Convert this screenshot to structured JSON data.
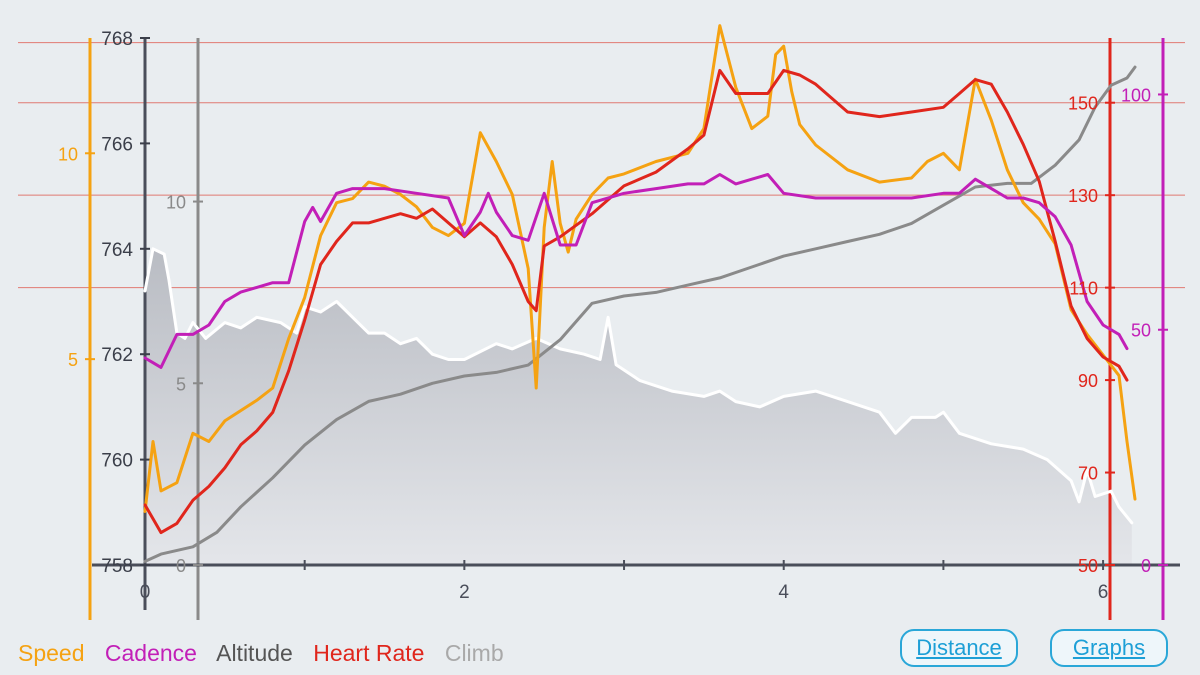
{
  "chart_data": {
    "type": "line",
    "x_ticks": [
      0,
      2,
      4,
      6
    ],
    "xlim": [
      0,
      6.25
    ],
    "axes": {
      "altitude": {
        "label_ticks": [
          758,
          760,
          762,
          764,
          766,
          768
        ],
        "range": [
          758,
          768
        ]
      },
      "climb": {
        "label_ticks": [
          0,
          5,
          10
        ],
        "range": [
          0,
          14.5
        ]
      },
      "speed": {
        "label_ticks": [
          5,
          10
        ],
        "range": [
          0,
          12.8
        ]
      },
      "heart_rate": {
        "label_ticks": [
          50,
          70,
          90,
          110,
          130,
          150
        ],
        "range": [
          50,
          164
        ]
      },
      "cadence": {
        "label_ticks": [
          0,
          50,
          100
        ],
        "range": [
          0,
          112
        ]
      }
    },
    "hr_grid_lines": [
      110,
      130,
      150,
      163
    ],
    "series": [
      {
        "name": "Altitude",
        "axis": "altitude",
        "color": "#ffffff",
        "fill": true,
        "points": [
          [
            0,
            763.2
          ],
          [
            0.05,
            764
          ],
          [
            0.12,
            763.9
          ],
          [
            0.15,
            763.4
          ],
          [
            0.2,
            762.4
          ],
          [
            0.25,
            762.3
          ],
          [
            0.3,
            762.6
          ],
          [
            0.38,
            762.3
          ],
          [
            0.5,
            762.6
          ],
          [
            0.6,
            762.5
          ],
          [
            0.7,
            762.7
          ],
          [
            0.85,
            762.6
          ],
          [
            0.95,
            762.4
          ],
          [
            1.0,
            762.9
          ],
          [
            1.1,
            762.8
          ],
          [
            1.2,
            763.0
          ],
          [
            1.3,
            762.7
          ],
          [
            1.4,
            762.4
          ],
          [
            1.5,
            762.4
          ],
          [
            1.6,
            762.2
          ],
          [
            1.7,
            762.3
          ],
          [
            1.8,
            762.0
          ],
          [
            1.9,
            761.9
          ],
          [
            2.0,
            761.9
          ],
          [
            2.2,
            762.2
          ],
          [
            2.3,
            762.1
          ],
          [
            2.45,
            762.3
          ],
          [
            2.6,
            762.1
          ],
          [
            2.75,
            762.0
          ],
          [
            2.85,
            761.9
          ],
          [
            2.9,
            762.7
          ],
          [
            2.95,
            761.8
          ],
          [
            3.1,
            761.5
          ],
          [
            3.3,
            761.3
          ],
          [
            3.5,
            761.2
          ],
          [
            3.6,
            761.3
          ],
          [
            3.7,
            761.1
          ],
          [
            3.85,
            761.0
          ],
          [
            4.0,
            761.2
          ],
          [
            4.2,
            761.3
          ],
          [
            4.4,
            761.1
          ],
          [
            4.6,
            760.9
          ],
          [
            4.7,
            760.5
          ],
          [
            4.8,
            760.8
          ],
          [
            4.95,
            760.8
          ],
          [
            5.0,
            760.9
          ],
          [
            5.1,
            760.5
          ],
          [
            5.3,
            760.3
          ],
          [
            5.5,
            760.2
          ],
          [
            5.65,
            760.0
          ],
          [
            5.8,
            759.6
          ],
          [
            5.85,
            759.2
          ],
          [
            5.9,
            759.8
          ],
          [
            5.95,
            759.3
          ],
          [
            6.05,
            759.4
          ],
          [
            6.1,
            759.1
          ],
          [
            6.18,
            758.8
          ]
        ]
      },
      {
        "name": "Climb",
        "axis": "climb",
        "color": "#8a8a8a",
        "points": [
          [
            0,
            0.1
          ],
          [
            0.1,
            0.3
          ],
          [
            0.3,
            0.5
          ],
          [
            0.45,
            0.9
          ],
          [
            0.6,
            1.6
          ],
          [
            0.8,
            2.4
          ],
          [
            1.0,
            3.3
          ],
          [
            1.2,
            4.0
          ],
          [
            1.4,
            4.5
          ],
          [
            1.6,
            4.7
          ],
          [
            1.8,
            5.0
          ],
          [
            2.0,
            5.2
          ],
          [
            2.2,
            5.3
          ],
          [
            2.4,
            5.5
          ],
          [
            2.6,
            6.2
          ],
          [
            2.8,
            7.2
          ],
          [
            3.0,
            7.4
          ],
          [
            3.2,
            7.5
          ],
          [
            3.4,
            7.7
          ],
          [
            3.6,
            7.9
          ],
          [
            3.8,
            8.2
          ],
          [
            4.0,
            8.5
          ],
          [
            4.2,
            8.7
          ],
          [
            4.4,
            8.9
          ],
          [
            4.6,
            9.1
          ],
          [
            4.8,
            9.4
          ],
          [
            5.0,
            9.9
          ],
          [
            5.2,
            10.4
          ],
          [
            5.4,
            10.5
          ],
          [
            5.55,
            10.5
          ],
          [
            5.7,
            11.0
          ],
          [
            5.85,
            11.7
          ],
          [
            5.95,
            12.6
          ],
          [
            6.05,
            13.2
          ],
          [
            6.15,
            13.4
          ],
          [
            6.2,
            13.7
          ]
        ]
      },
      {
        "name": "Speed",
        "axis": "speed",
        "color": "#f5a212",
        "points": [
          [
            0,
            1.3
          ],
          [
            0.05,
            3.0
          ],
          [
            0.1,
            1.8
          ],
          [
            0.2,
            2.0
          ],
          [
            0.3,
            3.2
          ],
          [
            0.4,
            3.0
          ],
          [
            0.5,
            3.5
          ],
          [
            0.7,
            4.0
          ],
          [
            0.8,
            4.3
          ],
          [
            0.9,
            5.5
          ],
          [
            1.0,
            6.5
          ],
          [
            1.1,
            8.0
          ],
          [
            1.2,
            8.8
          ],
          [
            1.3,
            8.9
          ],
          [
            1.4,
            9.3
          ],
          [
            1.5,
            9.2
          ],
          [
            1.6,
            9.0
          ],
          [
            1.7,
            8.7
          ],
          [
            1.8,
            8.2
          ],
          [
            1.9,
            8.0
          ],
          [
            2.0,
            8.3
          ],
          [
            2.1,
            10.5
          ],
          [
            2.2,
            9.8
          ],
          [
            2.3,
            9.0
          ],
          [
            2.4,
            7.2
          ],
          [
            2.45,
            4.3
          ],
          [
            2.5,
            8.2
          ],
          [
            2.55,
            9.8
          ],
          [
            2.6,
            8.3
          ],
          [
            2.65,
            7.6
          ],
          [
            2.7,
            8.4
          ],
          [
            2.8,
            9.0
          ],
          [
            2.9,
            9.4
          ],
          [
            3.0,
            9.5
          ],
          [
            3.2,
            9.8
          ],
          [
            3.4,
            10.0
          ],
          [
            3.5,
            10.6
          ],
          [
            3.6,
            13.1
          ],
          [
            3.7,
            11.6
          ],
          [
            3.8,
            10.6
          ],
          [
            3.9,
            10.9
          ],
          [
            3.95,
            12.4
          ],
          [
            4.0,
            12.6
          ],
          [
            4.05,
            11.5
          ],
          [
            4.1,
            10.7
          ],
          [
            4.2,
            10.2
          ],
          [
            4.4,
            9.6
          ],
          [
            4.6,
            9.3
          ],
          [
            4.8,
            9.4
          ],
          [
            4.9,
            9.8
          ],
          [
            5.0,
            10.0
          ],
          [
            5.1,
            9.6
          ],
          [
            5.2,
            11.8
          ],
          [
            5.3,
            10.8
          ],
          [
            5.4,
            9.6
          ],
          [
            5.5,
            8.8
          ],
          [
            5.6,
            8.4
          ],
          [
            5.7,
            7.8
          ],
          [
            5.8,
            6.2
          ],
          [
            5.9,
            5.6
          ],
          [
            6.0,
            5.1
          ],
          [
            6.1,
            4.6
          ],
          [
            6.15,
            3.0
          ],
          [
            6.2,
            1.6
          ]
        ]
      },
      {
        "name": "Heart Rate",
        "axis": "heart_rate",
        "color": "#e0261c",
        "points": [
          [
            0,
            63
          ],
          [
            0.05,
            60
          ],
          [
            0.1,
            57
          ],
          [
            0.2,
            59
          ],
          [
            0.3,
            64
          ],
          [
            0.4,
            67
          ],
          [
            0.5,
            71
          ],
          [
            0.6,
            76
          ],
          [
            0.7,
            79
          ],
          [
            0.8,
            83
          ],
          [
            0.9,
            92
          ],
          [
            1.0,
            103
          ],
          [
            1.1,
            115
          ],
          [
            1.2,
            120
          ],
          [
            1.3,
            124
          ],
          [
            1.4,
            124
          ],
          [
            1.5,
            125
          ],
          [
            1.6,
            126
          ],
          [
            1.7,
            125
          ],
          [
            1.8,
            127
          ],
          [
            1.9,
            124
          ],
          [
            2.0,
            121
          ],
          [
            2.1,
            124
          ],
          [
            2.2,
            121
          ],
          [
            2.3,
            115
          ],
          [
            2.4,
            107
          ],
          [
            2.45,
            105
          ],
          [
            2.5,
            119
          ],
          [
            2.6,
            121
          ],
          [
            2.8,
            126
          ],
          [
            3.0,
            132
          ],
          [
            3.2,
            135
          ],
          [
            3.4,
            140
          ],
          [
            3.5,
            143
          ],
          [
            3.6,
            157
          ],
          [
            3.7,
            152
          ],
          [
            3.8,
            152
          ],
          [
            3.9,
            152
          ],
          [
            4.0,
            157
          ],
          [
            4.1,
            156
          ],
          [
            4.2,
            154
          ],
          [
            4.4,
            148
          ],
          [
            4.6,
            147
          ],
          [
            4.8,
            148
          ],
          [
            5.0,
            149
          ],
          [
            5.1,
            152
          ],
          [
            5.2,
            155
          ],
          [
            5.3,
            154
          ],
          [
            5.4,
            148
          ],
          [
            5.5,
            141
          ],
          [
            5.6,
            133
          ],
          [
            5.7,
            120
          ],
          [
            5.8,
            106
          ],
          [
            5.9,
            99
          ],
          [
            6.0,
            95
          ],
          [
            6.1,
            93
          ],
          [
            6.15,
            90
          ]
        ]
      },
      {
        "name": "Cadence",
        "axis": "cadence",
        "color": "#c21fb7",
        "points": [
          [
            0,
            44
          ],
          [
            0.05,
            43
          ],
          [
            0.1,
            42
          ],
          [
            0.2,
            49
          ],
          [
            0.3,
            49
          ],
          [
            0.4,
            51
          ],
          [
            0.5,
            56
          ],
          [
            0.6,
            58
          ],
          [
            0.7,
            59
          ],
          [
            0.8,
            60
          ],
          [
            0.9,
            60
          ],
          [
            1.0,
            73
          ],
          [
            1.05,
            76
          ],
          [
            1.1,
            73
          ],
          [
            1.2,
            79
          ],
          [
            1.3,
            80
          ],
          [
            1.5,
            80
          ],
          [
            1.7,
            79
          ],
          [
            1.9,
            78
          ],
          [
            2.0,
            70
          ],
          [
            2.1,
            75
          ],
          [
            2.15,
            79
          ],
          [
            2.2,
            75
          ],
          [
            2.3,
            70
          ],
          [
            2.4,
            69
          ],
          [
            2.5,
            79
          ],
          [
            2.6,
            68
          ],
          [
            2.7,
            68
          ],
          [
            2.8,
            77
          ],
          [
            3.0,
            79
          ],
          [
            3.2,
            80
          ],
          [
            3.4,
            81
          ],
          [
            3.5,
            81
          ],
          [
            3.6,
            83
          ],
          [
            3.7,
            81
          ],
          [
            3.8,
            82
          ],
          [
            3.9,
            83
          ],
          [
            4.0,
            79
          ],
          [
            4.2,
            78
          ],
          [
            4.4,
            78
          ],
          [
            4.6,
            78
          ],
          [
            4.8,
            78
          ],
          [
            5.0,
            79
          ],
          [
            5.1,
            79
          ],
          [
            5.2,
            82
          ],
          [
            5.3,
            80
          ],
          [
            5.4,
            78
          ],
          [
            5.5,
            78
          ],
          [
            5.6,
            77
          ],
          [
            5.7,
            74
          ],
          [
            5.8,
            68
          ],
          [
            5.9,
            56
          ],
          [
            6.0,
            51
          ],
          [
            6.1,
            49
          ],
          [
            6.15,
            46
          ]
        ]
      }
    ]
  },
  "legend": [
    {
      "label": "Speed",
      "color": "#f5a212"
    },
    {
      "label": "Cadence",
      "color": "#c21fb7"
    },
    {
      "label": "Altitude",
      "color": "#555555"
    },
    {
      "label": "Heart Rate",
      "color": "#e0261c"
    },
    {
      "label": "Climb",
      "color": "#a9a9a9"
    }
  ],
  "buttons": {
    "distance": "Distance",
    "graphs": "Graphs"
  }
}
